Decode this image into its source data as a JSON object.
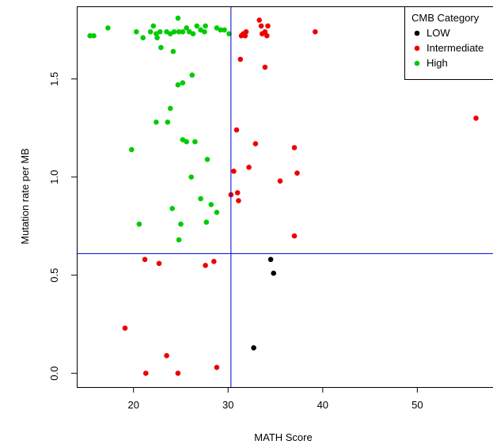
{
  "chart_data": {
    "type": "scatter",
    "title": "",
    "xlabel": "MATH Score",
    "ylabel": "Mutation rate per MB",
    "xlim": [
      14,
      58
    ],
    "ylim": [
      -0.07,
      1.87
    ],
    "x_ticks": [
      20,
      30,
      40,
      50
    ],
    "y_ticks": [
      0.0,
      0.5,
      1.0,
      1.5
    ],
    "x_tick_labels": [
      "20",
      "30",
      "40",
      "50"
    ],
    "y_tick_labels": [
      "0.0",
      "0.5",
      "1.0",
      "1.5"
    ],
    "reference_lines": {
      "vertical_x": 30.3,
      "horizontal_y": 0.61,
      "color": "#0000cc"
    },
    "legend": {
      "title": "CMB Category",
      "position": "top-right",
      "entries": [
        {
          "label": "LOW",
          "color": "#000000"
        },
        {
          "label": "Intermediate",
          "color": "#ee0000"
        },
        {
          "label": "High",
          "color": "#00cc00"
        }
      ]
    },
    "grid": false,
    "series": [
      {
        "name": "LOW",
        "color": "#000000",
        "points": [
          [
            34.5,
            0.58
          ],
          [
            34.8,
            0.51
          ],
          [
            32.7,
            0.13
          ]
        ]
      },
      {
        "name": "Intermediate",
        "color": "#ee0000",
        "points": [
          [
            31.4,
            1.72
          ],
          [
            31.6,
            1.73
          ],
          [
            31.9,
            1.74
          ],
          [
            31.8,
            1.72
          ],
          [
            33.3,
            1.8
          ],
          [
            33.5,
            1.77
          ],
          [
            33.6,
            1.73
          ],
          [
            33.9,
            1.74
          ],
          [
            34.2,
            1.77
          ],
          [
            34.1,
            1.72
          ],
          [
            39.2,
            1.74
          ],
          [
            31.3,
            1.6
          ],
          [
            33.9,
            1.56
          ],
          [
            56.2,
            1.3
          ],
          [
            30.9,
            1.24
          ],
          [
            32.9,
            1.17
          ],
          [
            37.0,
            1.15
          ],
          [
            30.6,
            1.03
          ],
          [
            32.2,
            1.05
          ],
          [
            37.3,
            1.02
          ],
          [
            35.5,
            0.98
          ],
          [
            30.3,
            0.91
          ],
          [
            31.0,
            0.92
          ],
          [
            31.1,
            0.88
          ],
          [
            37.0,
            0.7
          ],
          [
            21.2,
            0.58
          ],
          [
            22.7,
            0.56
          ],
          [
            28.5,
            0.57
          ],
          [
            27.6,
            0.55
          ],
          [
            19.1,
            0.23
          ],
          [
            23.5,
            0.09
          ],
          [
            21.3,
            0.0
          ],
          [
            24.7,
            0.0
          ],
          [
            28.8,
            0.03
          ]
        ]
      },
      {
        "name": "High",
        "color": "#00cc00",
        "points": [
          [
            15.4,
            1.72
          ],
          [
            15.8,
            1.72
          ],
          [
            17.3,
            1.76
          ],
          [
            20.3,
            1.74
          ],
          [
            21.0,
            1.71
          ],
          [
            21.8,
            1.74
          ],
          [
            22.1,
            1.77
          ],
          [
            22.4,
            1.73
          ],
          [
            22.5,
            1.71
          ],
          [
            22.8,
            1.74
          ],
          [
            23.5,
            1.74
          ],
          [
            23.9,
            1.73
          ],
          [
            24.3,
            1.74
          ],
          [
            24.7,
            1.81
          ],
          [
            24.8,
            1.74
          ],
          [
            25.2,
            1.74
          ],
          [
            25.6,
            1.76
          ],
          [
            25.9,
            1.74
          ],
          [
            26.3,
            1.73
          ],
          [
            26.7,
            1.77
          ],
          [
            27.1,
            1.75
          ],
          [
            27.6,
            1.77
          ],
          [
            27.5,
            1.74
          ],
          [
            28.8,
            1.76
          ],
          [
            29.2,
            1.75
          ],
          [
            29.6,
            1.75
          ],
          [
            30.1,
            1.73
          ],
          [
            22.9,
            1.66
          ],
          [
            24.2,
            1.64
          ],
          [
            26.2,
            1.52
          ],
          [
            25.2,
            1.48
          ],
          [
            24.7,
            1.47
          ],
          [
            23.9,
            1.35
          ],
          [
            22.4,
            1.28
          ],
          [
            23.6,
            1.28
          ],
          [
            25.2,
            1.19
          ],
          [
            25.6,
            1.18
          ],
          [
            26.5,
            1.18
          ],
          [
            19.8,
            1.14
          ],
          [
            27.8,
            1.09
          ],
          [
            26.1,
            1.0
          ],
          [
            27.1,
            0.89
          ],
          [
            24.1,
            0.84
          ],
          [
            28.2,
            0.86
          ],
          [
            28.8,
            0.82
          ],
          [
            27.7,
            0.77
          ],
          [
            20.6,
            0.76
          ],
          [
            25.0,
            0.76
          ],
          [
            24.8,
            0.68
          ]
        ]
      }
    ]
  }
}
